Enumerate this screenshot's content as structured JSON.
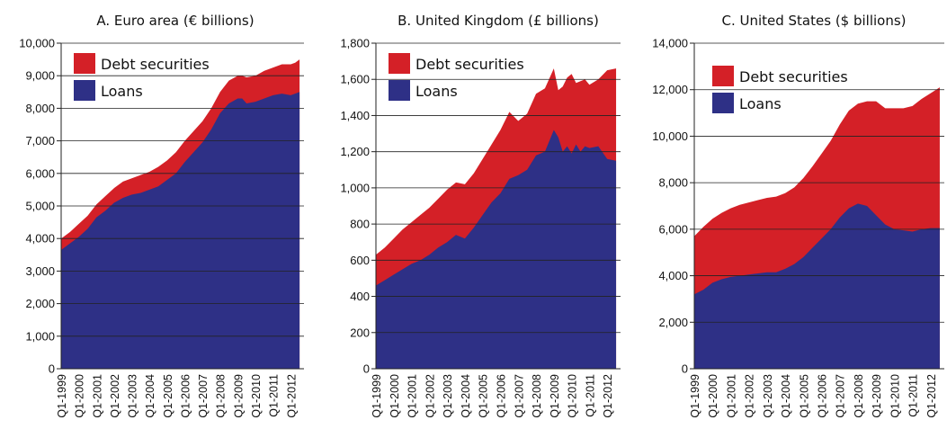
{
  "chart_data": [
    {
      "type": "area",
      "title": "A. Euro area (€ billions)",
      "xlabel": "",
      "ylabel": "",
      "ylim": [
        0,
        10000
      ],
      "yticks": [
        "0",
        "1,000",
        "2,000",
        "3,000",
        "4,000",
        "5,000",
        "6,000",
        "7,000",
        "8,000",
        "9,000",
        "10,000"
      ],
      "xticks": [
        "Q1-1999",
        "Q1-2000",
        "Q1-2001",
        "Q1-2002",
        "Q1-2003",
        "Q1-2004",
        "Q1-2005",
        "Q1-2006",
        "Q1-2007",
        "Q1-2008",
        "Q1-2009",
        "Q1-2010",
        "Q1-2011",
        "Q1-2012"
      ],
      "stacked": true,
      "grid": "horizontal",
      "legend": "top-left",
      "x": [
        1999.0,
        1999.5,
        2000.0,
        2000.5,
        2001.0,
        2001.5,
        2002.0,
        2002.5,
        2003.0,
        2003.5,
        2004.0,
        2004.5,
        2005.0,
        2005.5,
        2006.0,
        2006.5,
        2007.0,
        2007.5,
        2008.0,
        2008.5,
        2009.0,
        2009.25,
        2009.5,
        2010.0,
        2010.5,
        2011.0,
        2011.5,
        2012.0,
        2012.25,
        2012.5
      ],
      "series": [
        {
          "name": "Loans",
          "color": "#2e3086",
          "values": [
            3650,
            3850,
            4050,
            4300,
            4650,
            4850,
            5100,
            5250,
            5350,
            5400,
            5500,
            5600,
            5800,
            6000,
            6350,
            6650,
            6950,
            7350,
            7850,
            8150,
            8300,
            8300,
            8150,
            8200,
            8300,
            8400,
            8450,
            8400,
            8450,
            8500
          ]
        },
        {
          "name": "Debt securities",
          "color": "#d42027",
          "values": [
            350,
            350,
            400,
            400,
            400,
            450,
            450,
            500,
            500,
            550,
            550,
            600,
            600,
            650,
            650,
            650,
            650,
            650,
            650,
            700,
            700,
            700,
            800,
            800,
            850,
            850,
            900,
            950,
            950,
            1000
          ]
        }
      ]
    },
    {
      "type": "area",
      "title": "B. United Kingdom (£ billions)",
      "xlabel": "",
      "ylabel": "",
      "ylim": [
        0,
        1800
      ],
      "yticks": [
        "0",
        "200",
        "400",
        "600",
        "800",
        "1,000",
        "1,200",
        "1,400",
        "1,600",
        "1,800"
      ],
      "xticks": [
        "Q1-1999",
        "Q1-2000",
        "Q1-2001",
        "Q1-2002",
        "Q1-2003",
        "Q1-2004",
        "Q1-2005",
        "Q1-2006",
        "Q1-2007",
        "Q1-2008",
        "Q1-2009",
        "Q1-2010",
        "Q1-2011",
        "Q1-2012"
      ],
      "stacked": true,
      "grid": "horizontal",
      "legend": "top-left",
      "x": [
        1999.0,
        1999.5,
        2000.0,
        2000.5,
        2001.0,
        2001.5,
        2002.0,
        2002.5,
        2003.0,
        2003.5,
        2004.0,
        2004.5,
        2005.0,
        2005.5,
        2006.0,
        2006.5,
        2007.0,
        2007.5,
        2008.0,
        2008.5,
        2009.0,
        2009.25,
        2009.5,
        2009.75,
        2010.0,
        2010.25,
        2010.5,
        2010.75,
        2011.0,
        2011.5,
        2012.0,
        2012.5
      ],
      "series": [
        {
          "name": "Loans",
          "color": "#2e3086",
          "values": [
            460,
            490,
            520,
            550,
            580,
            600,
            630,
            670,
            700,
            740,
            720,
            780,
            850,
            920,
            970,
            1050,
            1070,
            1100,
            1180,
            1200,
            1320,
            1280,
            1200,
            1230,
            1190,
            1240,
            1200,
            1230,
            1220,
            1230,
            1160,
            1150
          ]
        },
        {
          "name": "Debt securities",
          "color": "#d42027",
          "values": [
            170,
            180,
            200,
            220,
            230,
            250,
            260,
            270,
            290,
            290,
            300,
            300,
            310,
            320,
            350,
            370,
            300,
            310,
            340,
            350,
            340,
            260,
            360,
            380,
            440,
            340,
            390,
            370,
            350,
            370,
            490,
            510
          ]
        }
      ]
    },
    {
      "type": "area",
      "title": "C. United States ($ billions)",
      "xlabel": "",
      "ylabel": "",
      "ylim": [
        0,
        14000
      ],
      "yticks": [
        "0",
        "2,000",
        "4,000",
        "6,000",
        "8,000",
        "10,000",
        "12,000",
        "14,000"
      ],
      "xticks": [
        "Q1-1999",
        "Q1-2000",
        "Q1-2001",
        "Q1-2002",
        "Q1-2003",
        "Q1-2004",
        "Q1-2005",
        "Q1-2006",
        "Q1-2007",
        "Q1-2008",
        "Q1-2009",
        "Q1-2010",
        "Q1-2011",
        "Q1-2012"
      ],
      "stacked": true,
      "grid": "horizontal",
      "legend": "top-left",
      "x": [
        1999.0,
        1999.5,
        2000.0,
        2000.5,
        2001.0,
        2001.5,
        2002.0,
        2002.5,
        2003.0,
        2003.5,
        2004.0,
        2004.5,
        2005.0,
        2005.5,
        2006.0,
        2006.5,
        2007.0,
        2007.5,
        2008.0,
        2008.5,
        2009.0,
        2009.5,
        2010.0,
        2010.5,
        2011.0,
        2011.5,
        2012.0,
        2012.5
      ],
      "series": [
        {
          "name": "Loans",
          "color": "#2e3086",
          "values": [
            3200,
            3400,
            3700,
            3850,
            3950,
            4000,
            4050,
            4100,
            4150,
            4150,
            4300,
            4500,
            4800,
            5200,
            5600,
            6000,
            6500,
            6900,
            7100,
            7000,
            6600,
            6200,
            6000,
            5950,
            5900,
            6000,
            6050,
            6050
          ]
        },
        {
          "name": "Debt securities",
          "color": "#d42027",
          "values": [
            2500,
            2700,
            2750,
            2850,
            2950,
            3050,
            3100,
            3150,
            3200,
            3250,
            3250,
            3300,
            3400,
            3500,
            3650,
            3800,
            4000,
            4200,
            4300,
            4500,
            4900,
            5000,
            5200,
            5250,
            5400,
            5600,
            5800,
            6050
          ]
        }
      ]
    }
  ]
}
